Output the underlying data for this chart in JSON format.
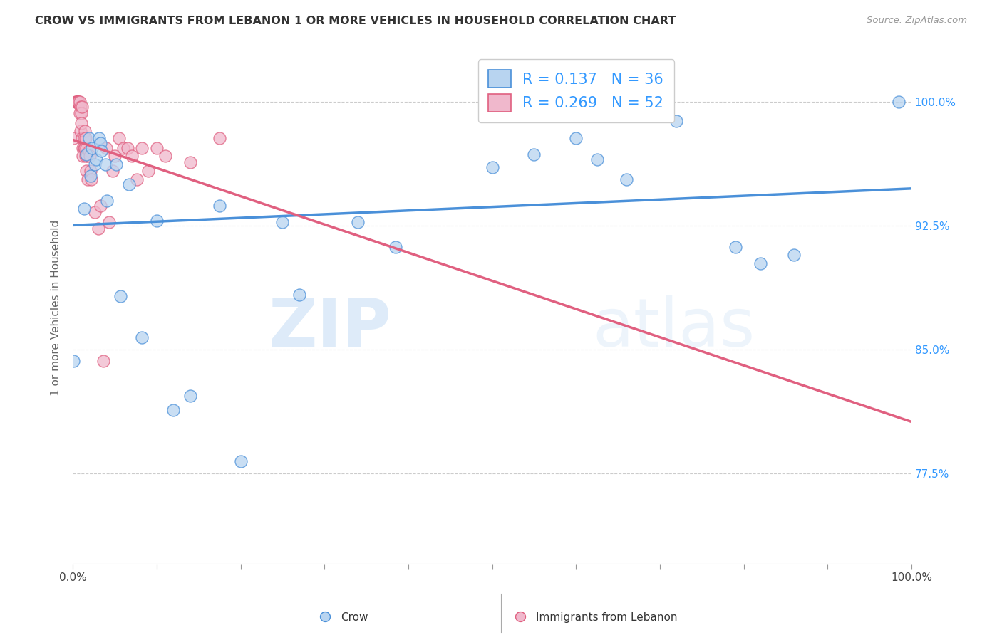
{
  "title": "CROW VS IMMIGRANTS FROM LEBANON 1 OR MORE VEHICLES IN HOUSEHOLD CORRELATION CHART",
  "source": "Source: ZipAtlas.com",
  "ylabel": "1 or more Vehicles in Household",
  "yticks": [
    0.775,
    0.85,
    0.925,
    1.0
  ],
  "ytick_labels": [
    "77.5%",
    "85.0%",
    "92.5%",
    "100.0%"
  ],
  "legend_crow": "Crow",
  "legend_leb": "Immigrants from Lebanon",
  "crow_R": 0.137,
  "crow_N": 36,
  "leb_R": 0.269,
  "leb_N": 52,
  "crow_color": "#b8d4f0",
  "crow_line_color": "#4a90d9",
  "leb_color": "#f0b8cc",
  "leb_line_color": "#e06080",
  "background_color": "#ffffff",
  "watermark_zip": "ZIP",
  "watermark_atlas": "atlas",
  "xlim": [
    0.0,
    1.0
  ],
  "ylim": [
    0.72,
    1.03
  ],
  "crow_points": [
    [
      0.001,
      0.843
    ],
    [
      0.013,
      0.935
    ],
    [
      0.016,
      0.968
    ],
    [
      0.019,
      0.978
    ],
    [
      0.021,
      0.955
    ],
    [
      0.023,
      0.972
    ],
    [
      0.026,
      0.962
    ],
    [
      0.028,
      0.965
    ],
    [
      0.031,
      0.978
    ],
    [
      0.033,
      0.975
    ],
    [
      0.034,
      0.97
    ],
    [
      0.039,
      0.962
    ],
    [
      0.041,
      0.94
    ],
    [
      0.052,
      0.962
    ],
    [
      0.057,
      0.882
    ],
    [
      0.067,
      0.95
    ],
    [
      0.082,
      0.857
    ],
    [
      0.1,
      0.928
    ],
    [
      0.12,
      0.813
    ],
    [
      0.14,
      0.822
    ],
    [
      0.175,
      0.937
    ],
    [
      0.2,
      0.782
    ],
    [
      0.25,
      0.927
    ],
    [
      0.27,
      0.883
    ],
    [
      0.34,
      0.927
    ],
    [
      0.385,
      0.912
    ],
    [
      0.5,
      0.96
    ],
    [
      0.55,
      0.968
    ],
    [
      0.6,
      0.978
    ],
    [
      0.625,
      0.965
    ],
    [
      0.66,
      0.953
    ],
    [
      0.72,
      0.988
    ],
    [
      0.79,
      0.912
    ],
    [
      0.82,
      0.902
    ],
    [
      0.86,
      0.907
    ],
    [
      0.985,
      1.0
    ]
  ],
  "leb_points": [
    [
      0.001,
      0.978
    ],
    [
      0.003,
      1.0
    ],
    [
      0.004,
      1.0
    ],
    [
      0.005,
      1.0
    ],
    [
      0.005,
      1.0
    ],
    [
      0.006,
      1.0
    ],
    [
      0.006,
      1.0
    ],
    [
      0.007,
      1.0
    ],
    [
      0.007,
      1.0
    ],
    [
      0.008,
      1.0
    ],
    [
      0.008,
      0.993
    ],
    [
      0.009,
      0.997
    ],
    [
      0.009,
      0.982
    ],
    [
      0.01,
      0.993
    ],
    [
      0.01,
      0.987
    ],
    [
      0.011,
      0.978
    ],
    [
      0.011,
      0.997
    ],
    [
      0.012,
      0.972
    ],
    [
      0.012,
      0.967
    ],
    [
      0.013,
      0.978
    ],
    [
      0.013,
      0.972
    ],
    [
      0.014,
      0.982
    ],
    [
      0.014,
      0.972
    ],
    [
      0.015,
      0.978
    ],
    [
      0.015,
      0.967
    ],
    [
      0.016,
      0.972
    ],
    [
      0.016,
      0.958
    ],
    [
      0.017,
      0.967
    ],
    [
      0.018,
      0.953
    ],
    [
      0.019,
      0.97
    ],
    [
      0.02,
      0.967
    ],
    [
      0.021,
      0.958
    ],
    [
      0.022,
      0.953
    ],
    [
      0.026,
      0.933
    ],
    [
      0.03,
      0.923
    ],
    [
      0.033,
      0.937
    ],
    [
      0.036,
      0.843
    ],
    [
      0.04,
      0.972
    ],
    [
      0.043,
      0.927
    ],
    [
      0.047,
      0.958
    ],
    [
      0.05,
      0.967
    ],
    [
      0.055,
      0.978
    ],
    [
      0.06,
      0.972
    ],
    [
      0.065,
      0.972
    ],
    [
      0.07,
      0.967
    ],
    [
      0.076,
      0.953
    ],
    [
      0.082,
      0.972
    ],
    [
      0.09,
      0.958
    ],
    [
      0.1,
      0.972
    ],
    [
      0.11,
      0.967
    ],
    [
      0.14,
      0.963
    ],
    [
      0.175,
      0.978
    ]
  ]
}
